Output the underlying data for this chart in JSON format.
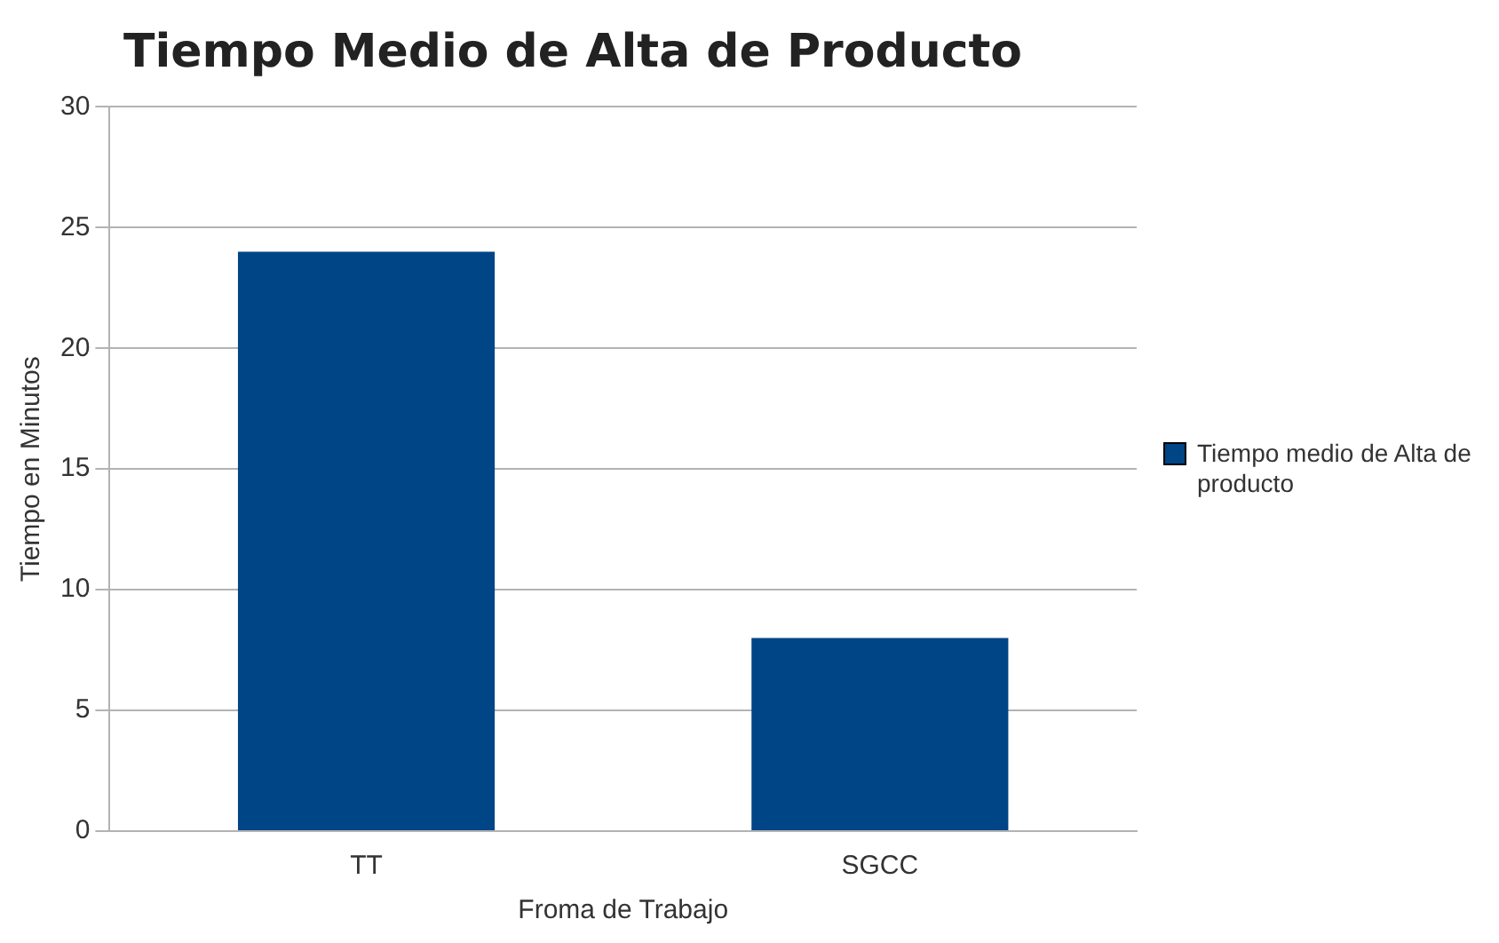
{
  "chart_data": {
    "type": "bar",
    "title": "Tiempo Medio de Alta de Producto",
    "xlabel": "Froma de Trabajo",
    "ylabel": "Tiempo en Minutos",
    "categories": [
      "TT",
      "SGCC"
    ],
    "series": [
      {
        "name": "Tiempo medio de Alta de producto",
        "color": "#004586",
        "values": [
          24,
          8
        ]
      }
    ],
    "ylim": [
      0,
      30
    ],
    "yticks": [
      0,
      5,
      10,
      15,
      20,
      25,
      30
    ],
    "grid": "y",
    "legend": "right"
  }
}
